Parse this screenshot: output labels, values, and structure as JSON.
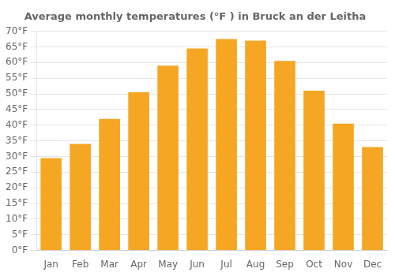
{
  "chart_data": {
    "type": "bar",
    "title": "Average monthly temperatures (°F ) in Bruck an der Leitha",
    "categories": [
      "Jan",
      "Feb",
      "Mar",
      "Apr",
      "May",
      "Jun",
      "Jul",
      "Aug",
      "Sep",
      "Oct",
      "Nov",
      "Dec"
    ],
    "values": [
      29.5,
      34.0,
      42.0,
      50.5,
      59.0,
      64.5,
      67.5,
      67.0,
      60.5,
      51.0,
      40.5,
      33.0
    ],
    "color": "#F5A623",
    "ylim": [
      0,
      70
    ],
    "yticks": [
      {
        "value": 0,
        "label": "0°F"
      },
      {
        "value": 5,
        "label": "5°F"
      },
      {
        "value": 10,
        "label": "10°F"
      },
      {
        "value": 15,
        "label": "15°F"
      },
      {
        "value": 20,
        "label": "20°F"
      },
      {
        "value": 25,
        "label": "25°F"
      },
      {
        "value": 30,
        "label": "30°F"
      },
      {
        "value": 35,
        "label": "35°F"
      },
      {
        "value": 40,
        "label": "40°F"
      },
      {
        "value": 45,
        "label": "45°F"
      },
      {
        "value": 50,
        "label": "50°F"
      },
      {
        "value": 55,
        "label": "55°F"
      },
      {
        "value": 60,
        "label": "60°F"
      },
      {
        "value": 65,
        "label": "65°F"
      },
      {
        "value": 70,
        "label": "70°F"
      }
    ],
    "grid": "y"
  }
}
